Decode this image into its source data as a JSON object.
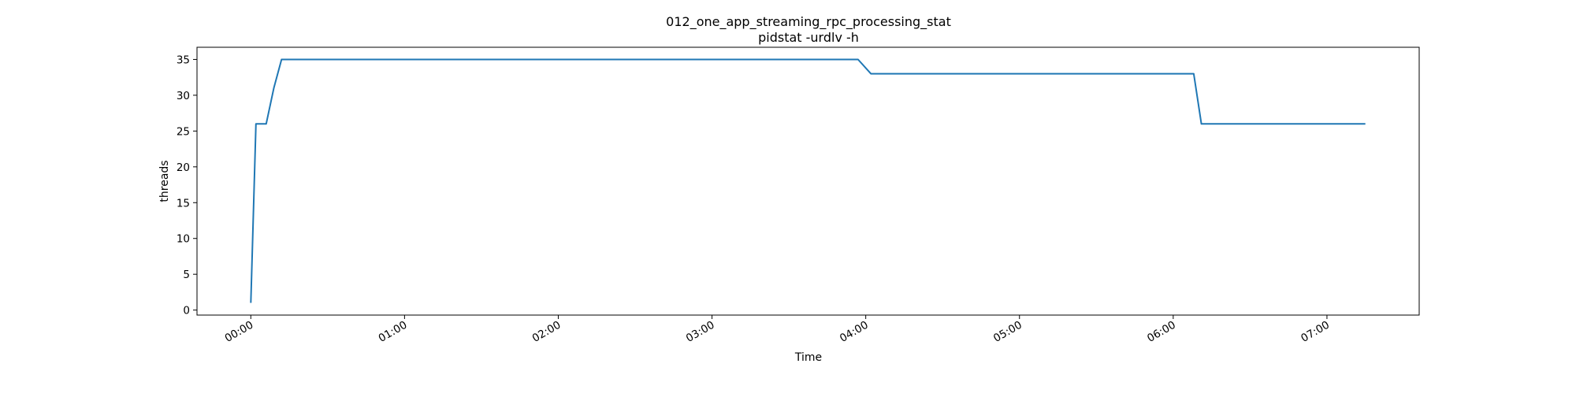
{
  "chart_data": {
    "type": "line",
    "title": "012_one_app_streaming_rpc_processing_stat",
    "subtitle": "pidstat -urdlv -h",
    "xlabel": "Time",
    "ylabel": "threads",
    "x_ticks": [
      "00:00",
      "01:00",
      "02:00",
      "03:00",
      "04:00",
      "05:00",
      "06:00",
      "07:00"
    ],
    "y_ticks": [
      "0",
      "5",
      "10",
      "15",
      "20",
      "25",
      "30",
      "35"
    ],
    "xlim": [
      "-00:21",
      "07:36"
    ],
    "ylim": [
      -0.7,
      36.7
    ],
    "grid": false,
    "color": "#1f77b4",
    "series": [
      {
        "x": [
          "00:00",
          "00:02",
          "00:04",
          "00:06",
          "00:09",
          "00:12",
          "03:57",
          "04:02",
          "06:08",
          "06:11",
          "07:15"
        ],
        "values": [
          1,
          26,
          26,
          26,
          31,
          35,
          35,
          33,
          33,
          26,
          26
        ]
      }
    ]
  }
}
